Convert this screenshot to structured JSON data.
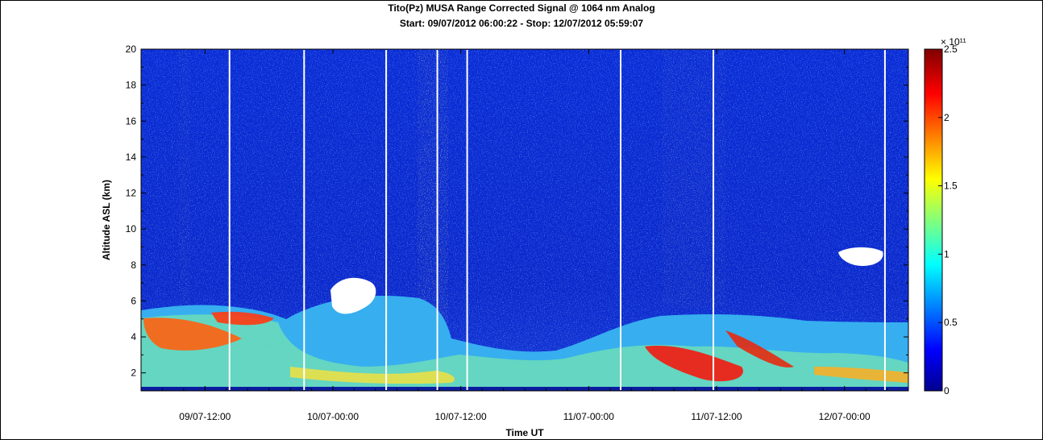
{
  "chart_data": {
    "type": "heatmap",
    "title": "Tito(Pz) MUSA Range Corrected Signal @ 1064 nm Analog",
    "subtitle": "Start: 09/07/2012 06:00:22 - Stop: 12/07/2012 05:59:07",
    "xlabel": "Time UT",
    "ylabel": "Altitude ASL (km)",
    "x_ticks": [
      "09/07-12:00",
      "10/07-00:00",
      "10/07-12:00",
      "11/07-00:00",
      "11/07-12:00",
      "12/07-00:00"
    ],
    "y_ticks": [
      "2",
      "4",
      "6",
      "8",
      "10",
      "12",
      "14",
      "16",
      "18",
      "20"
    ],
    "ylim": [
      1,
      20
    ],
    "colorbar": {
      "ticks": [
        "0",
        "0.5",
        "1",
        "1.5",
        "2",
        "2.5"
      ],
      "range": [
        0,
        2.5
      ],
      "exponent_label": "× 10¹¹",
      "colors": [
        "#00008f",
        "#0000ff",
        "#00ffff",
        "#ffff00",
        "#ff0000",
        "#800000"
      ]
    }
  }
}
